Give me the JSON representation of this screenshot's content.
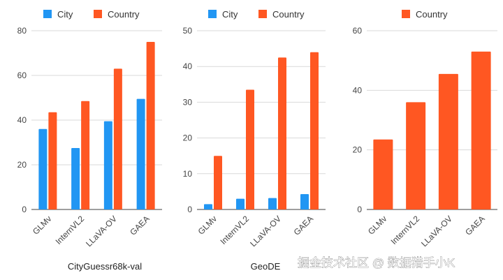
{
  "colors": {
    "city": "#2196F3",
    "country": "#FF5722",
    "grid": "#d9d9d9",
    "axis": "#666666"
  },
  "chart_data": [
    {
      "type": "bar",
      "title": "CityGuessr68k-val",
      "categories": [
        "GLMv",
        "InternVL2",
        "LLaVA-OV",
        "GAEA"
      ],
      "ylim": [
        0,
        80
      ],
      "yticks": [
        0,
        20,
        40,
        60,
        80
      ],
      "legend": "top-left",
      "grid": true,
      "series": [
        {
          "name": "City",
          "color": "#2196F3",
          "values": [
            36,
            27.5,
            39.5,
            49.5
          ]
        },
        {
          "name": "Country",
          "color": "#FF5722",
          "values": [
            43.5,
            48.5,
            63,
            75
          ]
        }
      ]
    },
    {
      "type": "bar",
      "title": "GeoDE",
      "categories": [
        "GLMv",
        "InternVL2",
        "LLaVA-OV",
        "GAEA"
      ],
      "ylim": [
        0,
        50
      ],
      "yticks": [
        0,
        10,
        20,
        30,
        40,
        50
      ],
      "legend": "top-left",
      "grid": true,
      "series": [
        {
          "name": "City",
          "color": "#2196F3",
          "values": [
            1.5,
            3,
            3.2,
            4.3
          ]
        },
        {
          "name": "Country",
          "color": "#FF5722",
          "values": [
            15,
            33.5,
            42.5,
            44
          ]
        }
      ]
    },
    {
      "type": "bar",
      "title": "",
      "categories": [
        "GLMv",
        "InternVL2",
        "LLaVA-OV",
        "GAEA"
      ],
      "ylim": [
        0,
        60
      ],
      "yticks": [
        0,
        20,
        40,
        60
      ],
      "legend": "top-center",
      "grid": true,
      "series": [
        {
          "name": "Country",
          "color": "#FF5722",
          "values": [
            23.5,
            36,
            45.5,
            53
          ]
        }
      ]
    }
  ],
  "watermark": "掘金技术社区 @ 数据猎手小K"
}
